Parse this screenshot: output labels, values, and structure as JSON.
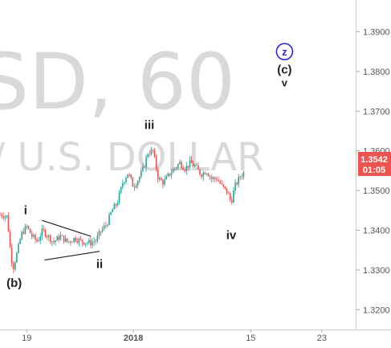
{
  "chart_data": {
    "type": "candlestick",
    "watermark": {
      "line1": "SD, 60",
      "line2": "/ U.S. DOLLAR"
    },
    "y_axis": {
      "min": 1.315,
      "max": 1.398,
      "position": "right",
      "ticks": [
        "1.3900",
        "1.3800",
        "1.3700",
        "1.3600",
        "1.3500",
        "1.3400",
        "1.3300",
        "1.3200"
      ]
    },
    "x_axis": {
      "labels": [
        {
          "text": "19",
          "pos": 0.075,
          "bold": false
        },
        {
          "text": "2018",
          "pos": 0.375,
          "bold": true
        },
        {
          "text": "15",
          "pos": 0.705,
          "bold": false
        },
        {
          "text": "23",
          "pos": 0.905,
          "bold": false
        }
      ]
    },
    "current_price": "1.3542",
    "countdown": "01:05",
    "price_tag_color": "#ef5350",
    "up_color": "#26a69a",
    "down_color": "#ef5350",
    "wave_labels": [
      {
        "text": "(b)",
        "t": 0.04,
        "price": 1.3257
      },
      {
        "text": "i",
        "t": 0.072,
        "price": 1.344
      },
      {
        "text": "ii",
        "t": 0.28,
        "price": 1.3305
      },
      {
        "text": "iii",
        "t": 0.42,
        "price": 1.3655
      },
      {
        "text": "iv",
        "t": 0.65,
        "price": 1.3378
      },
      {
        "text": "(c)",
        "t": 0.8,
        "price": 1.3795
      },
      {
        "text": "v",
        "t": 0.8,
        "price": 1.3762
      }
    ],
    "wave_circle": {
      "text": "z",
      "t": 0.8,
      "price": 1.385,
      "color": "#2a2ad8"
    },
    "triangle": {
      "upper": [
        [
          0.118,
          1.3425
        ],
        [
          0.255,
          1.3385
        ]
      ],
      "lower": [
        [
          0.125,
          1.3325
        ],
        [
          0.28,
          1.3347
        ]
      ]
    },
    "price_path": [
      [
        0.0,
        1.344
      ],
      [
        0.02,
        1.3435
      ],
      [
        0.03,
        1.334
      ],
      [
        0.037,
        1.3305
      ],
      [
        0.05,
        1.335
      ],
      [
        0.06,
        1.339
      ],
      [
        0.075,
        1.341
      ],
      [
        0.09,
        1.3385
      ],
      [
        0.105,
        1.3372
      ],
      [
        0.12,
        1.34
      ],
      [
        0.135,
        1.3385
      ],
      [
        0.15,
        1.337
      ],
      [
        0.17,
        1.3385
      ],
      [
        0.19,
        1.337
      ],
      [
        0.21,
        1.338
      ],
      [
        0.23,
        1.3372
      ],
      [
        0.255,
        1.3368
      ],
      [
        0.27,
        1.3375
      ],
      [
        0.285,
        1.34
      ],
      [
        0.3,
        1.3415
      ],
      [
        0.315,
        1.345
      ],
      [
        0.33,
        1.347
      ],
      [
        0.345,
        1.352
      ],
      [
        0.36,
        1.3545
      ],
      [
        0.375,
        1.351
      ],
      [
        0.39,
        1.353
      ],
      [
        0.405,
        1.356
      ],
      [
        0.415,
        1.3595
      ],
      [
        0.43,
        1.36
      ],
      [
        0.445,
        1.353
      ],
      [
        0.46,
        1.352
      ],
      [
        0.475,
        1.354
      ],
      [
        0.49,
        1.3555
      ],
      [
        0.505,
        1.357
      ],
      [
        0.52,
        1.3555
      ],
      [
        0.535,
        1.357
      ],
      [
        0.55,
        1.356
      ],
      [
        0.565,
        1.354
      ],
      [
        0.58,
        1.355
      ],
      [
        0.595,
        1.353
      ],
      [
        0.61,
        1.353
      ],
      [
        0.625,
        1.351
      ],
      [
        0.64,
        1.3495
      ],
      [
        0.65,
        1.347
      ],
      [
        0.66,
        1.351
      ],
      [
        0.675,
        1.3535
      ],
      [
        0.685,
        1.3545
      ]
    ]
  }
}
